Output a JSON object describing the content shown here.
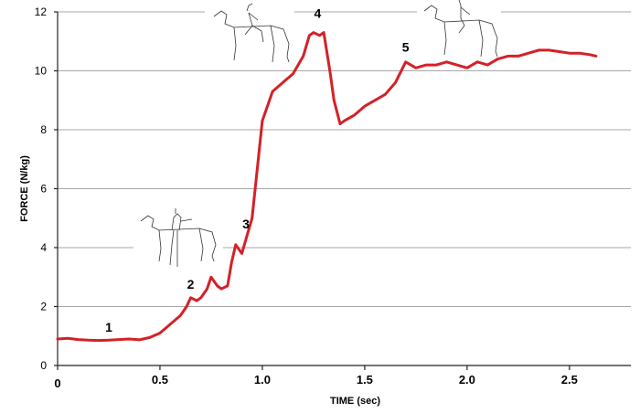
{
  "chart_data": {
    "type": "line",
    "title": "",
    "xlabel": "TIME (sec)",
    "ylabel": "FORCE (N/kg)",
    "xlim": [
      0,
      2.8
    ],
    "ylim": [
      0,
      12
    ],
    "xticks": [
      "0",
      "0.5",
      "1.0",
      "1.5",
      "2.0",
      "2.5"
    ],
    "xtick_values": [
      0,
      0.5,
      1.0,
      1.5,
      2.0,
      2.5
    ],
    "yticks": [
      "0",
      "2",
      "4",
      "6",
      "8",
      "10",
      "12"
    ],
    "ytick_values": [
      0,
      2,
      4,
      6,
      8,
      10,
      12
    ],
    "grid": "horizontal",
    "series": [
      {
        "color": "#d42128",
        "x": [
          0,
          0.05,
          0.1,
          0.15,
          0.2,
          0.25,
          0.3,
          0.35,
          0.4,
          0.45,
          0.5,
          0.55,
          0.6,
          0.63,
          0.65,
          0.68,
          0.7,
          0.73,
          0.75,
          0.78,
          0.8,
          0.83,
          0.85,
          0.87,
          0.9,
          0.95,
          1.0,
          1.05,
          1.1,
          1.15,
          1.2,
          1.23,
          1.25,
          1.28,
          1.3,
          1.33,
          1.35,
          1.38,
          1.4,
          1.45,
          1.5,
          1.55,
          1.6,
          1.65,
          1.7,
          1.75,
          1.8,
          1.85,
          1.9,
          1.95,
          2.0,
          2.05,
          2.1,
          2.15,
          2.2,
          2.25,
          2.3,
          2.35,
          2.4,
          2.45,
          2.5,
          2.55,
          2.6,
          2.63
        ],
        "values": [
          0.9,
          0.92,
          0.88,
          0.86,
          0.85,
          0.86,
          0.88,
          0.9,
          0.87,
          0.95,
          1.1,
          1.4,
          1.7,
          2.0,
          2.3,
          2.2,
          2.3,
          2.6,
          3.0,
          2.7,
          2.6,
          2.7,
          3.5,
          4.1,
          3.8,
          5.0,
          8.3,
          9.3,
          9.6,
          9.9,
          10.5,
          11.2,
          11.3,
          11.2,
          11.3,
          10.0,
          9.0,
          8.2,
          8.3,
          8.5,
          8.8,
          9.0,
          9.2,
          9.6,
          10.3,
          10.1,
          10.2,
          10.2,
          10.3,
          10.2,
          10.1,
          10.3,
          10.2,
          10.4,
          10.5,
          10.5,
          10.6,
          10.7,
          10.7,
          10.65,
          10.6,
          10.6,
          10.55,
          10.5
        ]
      }
    ],
    "annotations": [
      {
        "label": "1",
        "x": 0.25,
        "y": 1.15
      },
      {
        "label": "2",
        "x": 0.65,
        "y": 2.6
      },
      {
        "label": "3",
        "x": 0.92,
        "y": 4.65
      },
      {
        "label": "4",
        "x": 1.27,
        "y": 11.8
      },
      {
        "label": "5",
        "x": 1.7,
        "y": 10.65
      }
    ]
  }
}
